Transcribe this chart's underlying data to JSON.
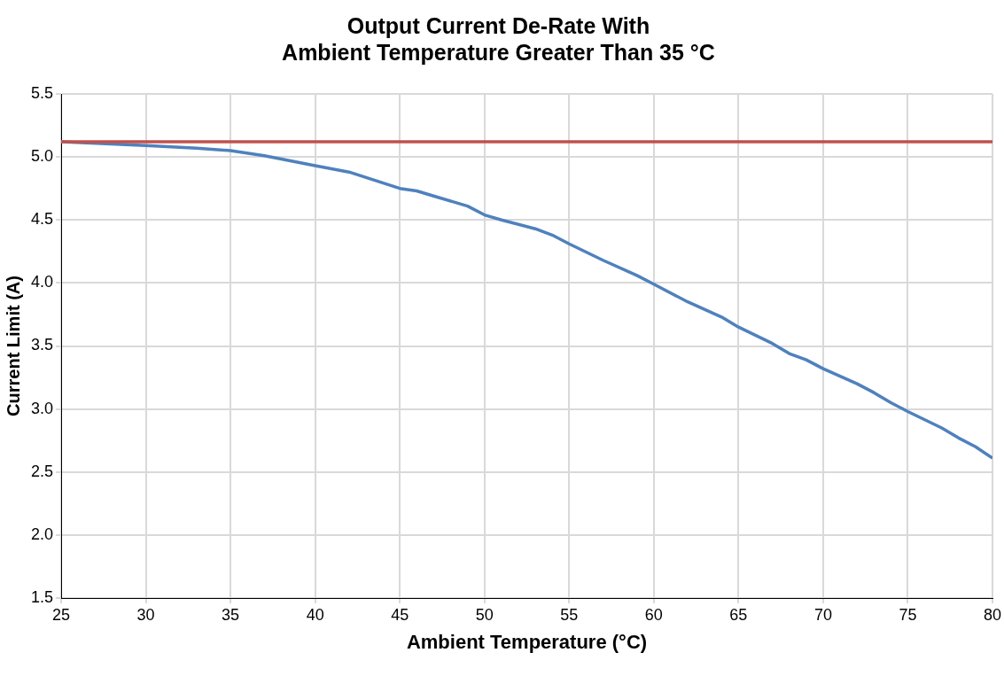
{
  "chart_data": {
    "type": "line",
    "title": "Output Current De-Rate With\nAmbient Temperature Greater Than 35 °C",
    "xlabel": "Ambient Temperature (°C)",
    "ylabel": "Current Limit (A)",
    "xlim": [
      25,
      80
    ],
    "xticks": [
      25,
      30,
      35,
      40,
      45,
      50,
      55,
      60,
      65,
      70,
      75,
      80
    ],
    "ylim": [
      1.5,
      5.5
    ],
    "yticks": [
      1.5,
      {
        "value": 2,
        "label": "2.0"
      },
      2.5,
      {
        "value": 3,
        "label": "3.0"
      },
      3.5,
      {
        "value": 4,
        "label": "4.0"
      },
      4.5,
      {
        "value": 5,
        "label": "5.0"
      },
      5.5
    ],
    "grid": true,
    "legend": false,
    "marker": "none",
    "line_style": "solid",
    "series": [
      {
        "color": "#c0504d",
        "x": [
          25,
          80
        ],
        "values": [
          5.12,
          5.12
        ]
      },
      {
        "color": "#4f81bd",
        "x": [
          25,
          30,
          33,
          35,
          37,
          40,
          42,
          45,
          46,
          47,
          49,
          50,
          51,
          53,
          54,
          55,
          57,
          59,
          60,
          62,
          64,
          65,
          67,
          68,
          69,
          70,
          72,
          73,
          74,
          75,
          77,
          78,
          79,
          80
        ],
        "values": [
          5.12,
          5.09,
          5.07,
          5.05,
          5.01,
          4.93,
          4.88,
          4.75,
          4.73,
          4.69,
          4.61,
          4.54,
          4.5,
          4.43,
          4.38,
          4.31,
          4.18,
          4.06,
          3.99,
          3.85,
          3.73,
          3.65,
          3.52,
          3.44,
          3.39,
          3.32,
          3.2,
          3.13,
          3.05,
          2.98,
          2.85,
          2.77,
          2.7,
          2.61
        ]
      }
    ]
  }
}
